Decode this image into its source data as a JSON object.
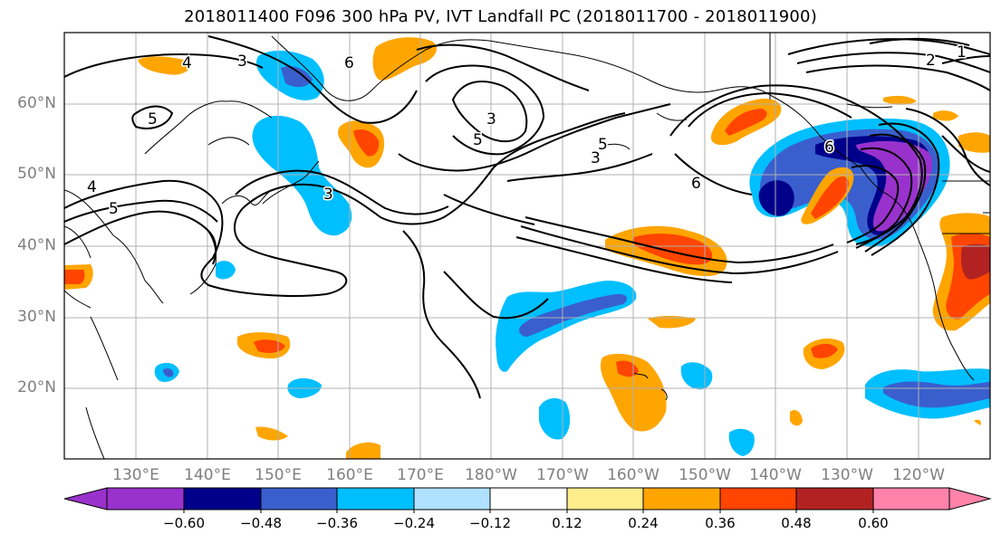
{
  "title": "2018011400 F096 300 hPa PV, IVT Landfall PC (2018011700 - 2018011900)",
  "lat_labels": [
    "60°N",
    "50°N",
    "40°N",
    "30°N",
    "20°N"
  ],
  "lon_labels": [
    "130°E",
    "140°E",
    "150°E",
    "160°E",
    "170°E",
    "180°W",
    "170°W",
    "160°W",
    "150°W",
    "140°W",
    "130°W",
    "120°W"
  ],
  "contour_labels": [
    "4",
    "3",
    "6",
    "3",
    "5",
    "5",
    "4",
    "5",
    "3",
    "6",
    "5",
    "3",
    "6",
    "2",
    "1"
  ],
  "colorbar": {
    "ticks": [
      "−0.60",
      "−0.48",
      "−0.36",
      "−0.24",
      "−0.12",
      "0.12",
      "0.24",
      "0.36",
      "0.48",
      "0.60"
    ],
    "colors": [
      "#9932CC",
      "#00008B",
      "#3A5FCD",
      "#00BFFF",
      "#B0E2FF",
      "#FFFFFF",
      "#FFEC8B",
      "#FFA500",
      "#FF4500",
      "#B22222",
      "#FF82AB"
    ]
  },
  "contour_color": "#000000",
  "grid_color": "#b0b0b0",
  "land_color": "#000000"
}
